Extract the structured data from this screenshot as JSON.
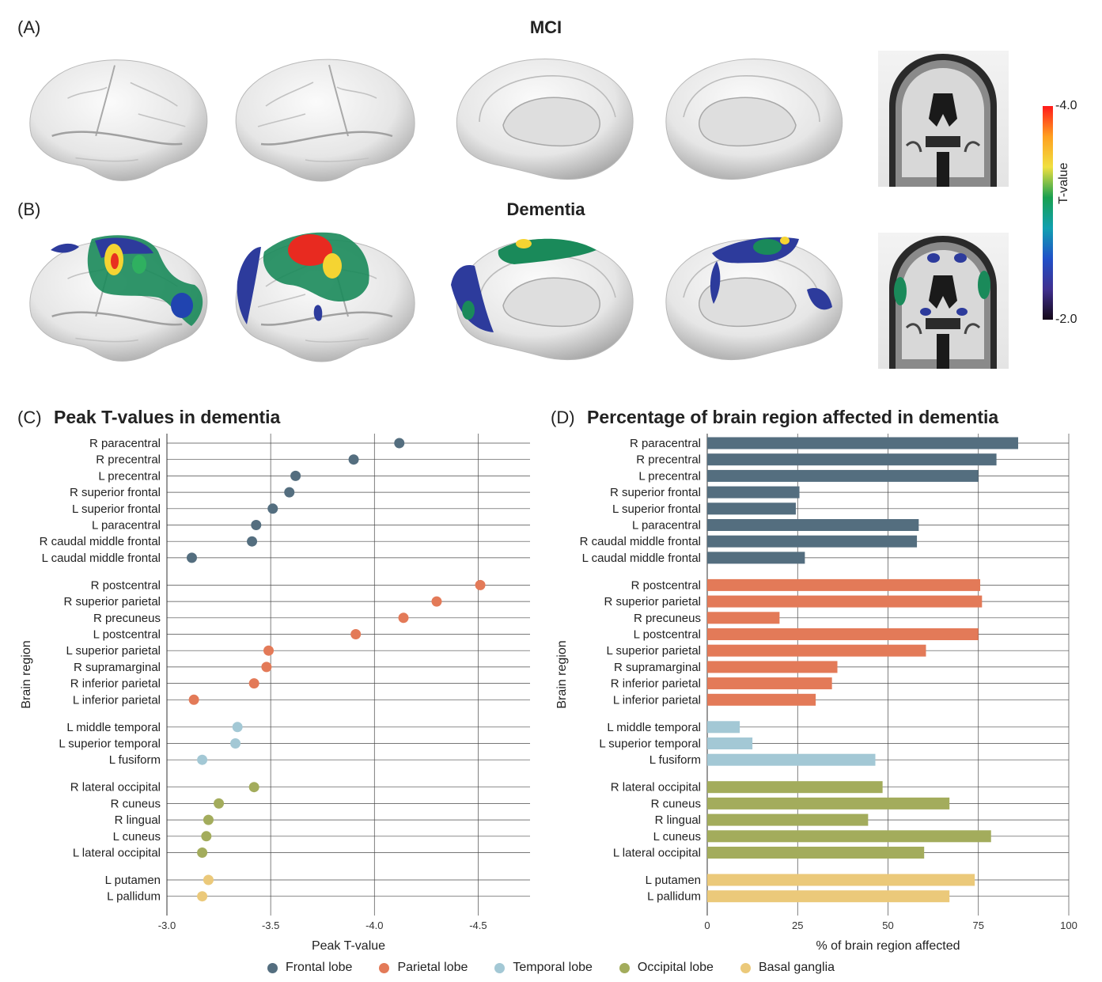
{
  "panel_a": {
    "letter": "(A)",
    "title": "MCI"
  },
  "panel_b": {
    "letter": "(B)",
    "title": "Dementia"
  },
  "colorbar": {
    "label": "T-value",
    "max_label": "-4.0",
    "min_label": "-2.0",
    "colors": [
      "#ff1a1a",
      "#ffa020",
      "#f0e040",
      "#18a050",
      "#10a0b0",
      "#2050c8",
      "#403090",
      "#140818"
    ]
  },
  "brain_views": [
    {
      "row": "MCI",
      "name": "left-lateral",
      "activation": []
    },
    {
      "row": "MCI",
      "name": "right-lateral",
      "activation": []
    },
    {
      "row": "MCI",
      "name": "left-medial",
      "activation": []
    },
    {
      "row": "MCI",
      "name": "right-medial",
      "activation": []
    },
    {
      "row": "MCI",
      "name": "coronal-slice",
      "activation": []
    },
    {
      "row": "Dementia",
      "name": "left-lateral",
      "activation": [
        "frontal",
        "parietal",
        "occipital"
      ]
    },
    {
      "row": "Dementia",
      "name": "right-lateral",
      "activation": [
        "frontal",
        "parietal",
        "temporal",
        "occipital"
      ]
    },
    {
      "row": "Dementia",
      "name": "left-medial",
      "activation": [
        "paracentral",
        "cuneus",
        "lingual"
      ]
    },
    {
      "row": "Dementia",
      "name": "right-medial",
      "activation": [
        "paracentral",
        "precuneus",
        "cuneus"
      ]
    },
    {
      "row": "Dementia",
      "name": "coronal-slice",
      "activation": [
        "cortex",
        "putamen",
        "pallidum"
      ]
    }
  ],
  "legend": [
    {
      "name": "Frontal lobe",
      "color": "#546e7f"
    },
    {
      "name": "Parietal lobe",
      "color": "#e37a58"
    },
    {
      "name": "Temporal lobe",
      "color": "#a3c8d5"
    },
    {
      "name": "Occipital lobe",
      "color": "#a3ac5c"
    },
    {
      "name": "Basal ganglia",
      "color": "#ebc97a"
    }
  ],
  "chart_data": [
    {
      "type": "scatter",
      "letter": "(C)",
      "title": "Peak T-values in dementia",
      "xlabel": "Peak T-value",
      "ylabel": "Brain region",
      "xlim": [
        -3.0,
        -4.75
      ],
      "xticks": [
        -3.0,
        -3.5,
        -4.0,
        -4.5
      ],
      "xtick_labels": [
        "-3.0",
        "-3.5",
        "-4.0",
        "-4.5"
      ],
      "grid": true,
      "groups": [
        {
          "lobe": "Frontal lobe",
          "regions": [
            "R paracentral",
            "R precentral",
            "L precentral",
            "R superior frontal",
            "L superior frontal",
            "L paracentral",
            "R caudal middle frontal",
            "L caudal middle frontal"
          ],
          "values": [
            -4.12,
            -3.9,
            -3.62,
            -3.59,
            -3.51,
            -3.43,
            -3.41,
            -3.12
          ]
        },
        {
          "lobe": "Parietal lobe",
          "regions": [
            "R postcentral",
            "R superior parietal",
            "R precuneus",
            "L postcentral",
            "L superior parietal",
            "R supramarginal",
            "R inferior parietal",
            "L inferior parietal"
          ],
          "values": [
            -4.51,
            -4.3,
            -4.14,
            -3.91,
            -3.49,
            -3.48,
            -3.42,
            -3.13
          ]
        },
        {
          "lobe": "Temporal lobe",
          "regions": [
            "L middle temporal",
            "L superior temporal",
            "L fusiform"
          ],
          "values": [
            -3.34,
            -3.33,
            -3.17
          ]
        },
        {
          "lobe": "Occipital lobe",
          "regions": [
            "R lateral occipital",
            "R cuneus",
            "R lingual",
            "L cuneus",
            "L lateral occipital"
          ],
          "values": [
            -3.42,
            -3.25,
            -3.2,
            -3.19,
            -3.17
          ]
        },
        {
          "lobe": "Basal ganglia",
          "regions": [
            "L putamen",
            "L pallidum"
          ],
          "values": [
            -3.2,
            -3.17
          ]
        }
      ]
    },
    {
      "type": "bar",
      "letter": "(D)",
      "title": "Percentage of brain region affected in dementia",
      "xlabel": "% of brain region affected",
      "ylabel": "Brain region",
      "xlim": [
        0,
        100
      ],
      "xticks": [
        0,
        25,
        50,
        75,
        100
      ],
      "xtick_labels": [
        "0",
        "25",
        "50",
        "75",
        "100"
      ],
      "grid": true,
      "groups": [
        {
          "lobe": "Frontal lobe",
          "regions": [
            "R paracentral",
            "R precentral",
            "L precentral",
            "R superior frontal",
            "L superior frontal",
            "L paracentral",
            "R caudal middle frontal",
            "L caudal middle frontal"
          ],
          "values": [
            86,
            80,
            75,
            25.5,
            24.5,
            58.5,
            58,
            27
          ]
        },
        {
          "lobe": "Parietal lobe",
          "regions": [
            "R postcentral",
            "R superior parietal",
            "R precuneus",
            "L postcentral",
            "L superior parietal",
            "R supramarginal",
            "R inferior parietal",
            "L inferior parietal"
          ],
          "values": [
            75.5,
            76,
            20,
            75,
            60.5,
            36,
            34.5,
            30
          ]
        },
        {
          "lobe": "Temporal lobe",
          "regions": [
            "L middle temporal",
            "L superior temporal",
            "L fusiform"
          ],
          "values": [
            9,
            12.5,
            46.5
          ]
        },
        {
          "lobe": "Occipital lobe",
          "regions": [
            "R lateral occipital",
            "R cuneus",
            "R lingual",
            "L cuneus",
            "L lateral occipital"
          ],
          "values": [
            48.5,
            67,
            44.5,
            78.5,
            60
          ]
        },
        {
          "lobe": "Basal ganglia",
          "regions": [
            "L putamen",
            "L pallidum"
          ],
          "values": [
            74,
            67
          ]
        }
      ]
    }
  ]
}
